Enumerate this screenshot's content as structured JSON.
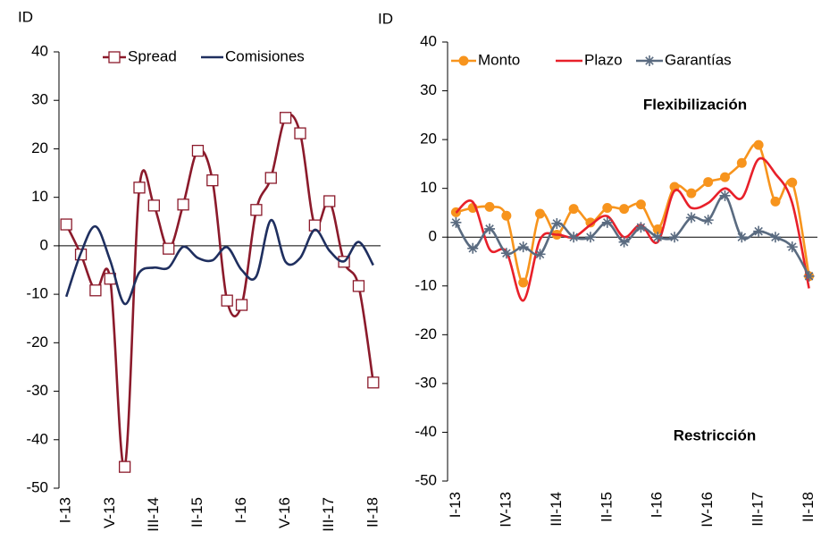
{
  "chart_data": [
    {
      "type": "line",
      "y_label": "ID",
      "categories": [
        "I-13",
        null,
        null,
        "V-13",
        null,
        null,
        "III-14",
        null,
        null,
        "II-15",
        null,
        null,
        "I-16",
        null,
        null,
        "V-16",
        null,
        null,
        "III-17",
        null,
        null,
        "II-18"
      ],
      "series": [
        {
          "name": "Spread",
          "color": "#8b1a2b",
          "marker": "square",
          "values": [
            4.4,
            -1.8,
            -9.2,
            -6.8,
            -45.6,
            12,
            8.3,
            -0.6,
            8.5,
            19.6,
            13.5,
            -11.3,
            -12.2,
            7.4,
            14,
            26.4,
            23.2,
            4.2,
            9.2,
            -3.3,
            -8.3,
            -28.2
          ]
        },
        {
          "name": "Comisiones",
          "color": "#1f2f5f",
          "marker": null,
          "values": [
            -10.5,
            -1.5,
            4,
            -3,
            -12,
            -5.5,
            -4.5,
            -4.5,
            -0.2,
            -2.5,
            -3,
            -0.3,
            -5,
            -6.3,
            5.3,
            -3.3,
            -2.5,
            3.3,
            -1,
            -3.2,
            0.8,
            -4
          ]
        }
      ],
      "ylim": [
        -50,
        40
      ],
      "yticks": [
        -50,
        -40,
        -30,
        -20,
        -10,
        0,
        10,
        20,
        30,
        40
      ],
      "legend": "top"
    },
    {
      "type": "line",
      "y_label": "ID",
      "categories": [
        "I-13",
        null,
        null,
        "IV-13",
        null,
        null,
        "III-14",
        null,
        null,
        "II-15",
        null,
        null,
        "I-16",
        null,
        null,
        "IV-16",
        null,
        null,
        "III-17",
        null,
        null,
        "II-18"
      ],
      "series": [
        {
          "name": "Monto",
          "color": "#f7941d",
          "marker": "circle",
          "values": [
            5.1,
            6,
            6.2,
            4.4,
            -9.3,
            4.8,
            0.5,
            5.8,
            3,
            6,
            5.8,
            6.7,
            1.6,
            10.3,
            9,
            11.3,
            12.3,
            15.2,
            18.9,
            7.3,
            11.2,
            -8
          ]
        },
        {
          "name": "Plazo",
          "color": "#e8202a",
          "marker": null,
          "values": [
            5,
            7.2,
            -2.5,
            -3,
            -13,
            -0.5,
            0.5,
            0,
            2.5,
            4.3,
            0,
            2.5,
            -1,
            9.5,
            6,
            7,
            10,
            8,
            16,
            13,
            7,
            -10.5
          ]
        },
        {
          "name": "Garantías",
          "color": "#5a6b80",
          "marker": "star",
          "values": [
            3,
            -2.3,
            1.7,
            -3.3,
            -2,
            -3.5,
            2.8,
            0,
            0,
            3,
            -1,
            2,
            0,
            0,
            4,
            3.5,
            8.5,
            0,
            1.2,
            0,
            -2,
            -8
          ]
        }
      ],
      "ylim": [
        -50,
        40
      ],
      "yticks": [
        -50,
        -40,
        -30,
        -20,
        -10,
        0,
        10,
        20,
        30,
        40
      ],
      "legend": "top",
      "annotations": [
        "Flexibilización",
        "Restricción"
      ]
    }
  ]
}
